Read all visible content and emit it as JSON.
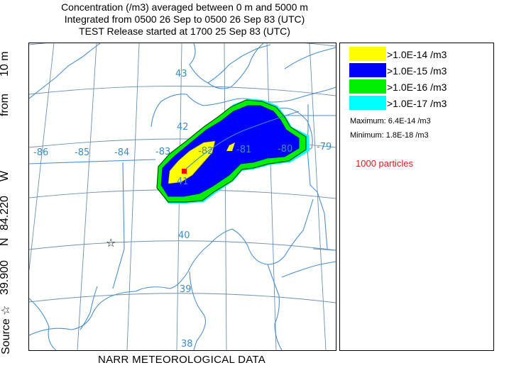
{
  "header": {
    "line1": "Concentration  (/m3) averaged between      0 m and  5000 m",
    "line2": "Integrated from 0500 26 Sep to 0500 26 Sep 83 (UTC)",
    "line3": "TEST Release started at 1700 25 Sep 83 (UTC)"
  },
  "side_label": {
    "source_word": "Source ☆",
    "lat": "39.900",
    "lat_dir": "N",
    "lon": "84.220",
    "lon_dir": "W",
    "from_word": "from",
    "height": "10 m"
  },
  "footer": {
    "meteorology": "NARR METEOROLOGICAL DATA"
  },
  "map": {
    "longitude_labels": [
      "-86",
      "-85",
      "-84",
      "-83",
      "-82",
      "-81",
      "-80",
      "-79"
    ],
    "latitude_labels": [
      "43",
      "42",
      "41",
      "40",
      "39",
      "38"
    ],
    "source_marker_icon": "star-icon",
    "max_marker_icon": "red-square-icon"
  },
  "legend": {
    "levels": [
      {
        "label": ">1.0E-14 /m3",
        "color": "#ffff00"
      },
      {
        "label": ">1.0E-15 /m3",
        "color": "#0000ff"
      },
      {
        "label": ">1.0E-16 /m3",
        "color": "#00ee00"
      },
      {
        "label": ">1.0E-17 /m3",
        "color": "#00ffff"
      }
    ],
    "maximum": "Maximum: 6.4E-14 /m3",
    "minimum": "Minimum: 1.8E-18 /m3",
    "particles": "1000 particles"
  },
  "colors": {
    "grid": "#6e8fb3",
    "boundary": "#4a8fd0",
    "marker": "#ff0000"
  }
}
